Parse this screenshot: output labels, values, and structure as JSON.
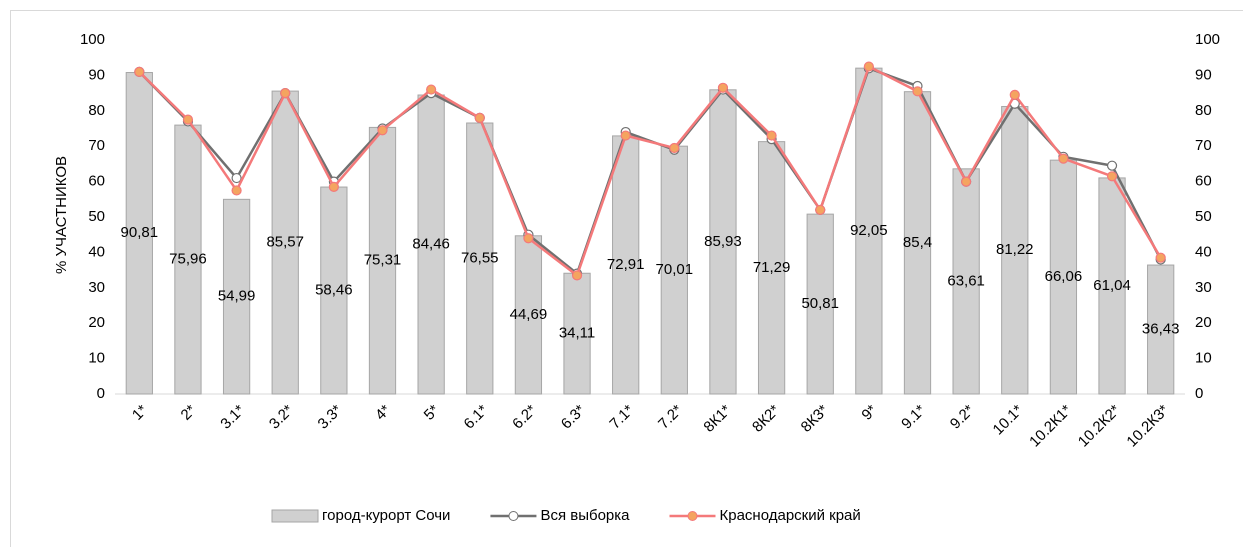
{
  "chart_data": {
    "type": "bar-line",
    "y_label": "% УЧАСТНИКОВ",
    "categories": [
      "1*",
      "2*",
      "3.1*",
      "3.2*",
      "3.3*",
      "4*",
      "5*",
      "6.1*",
      "6.2*",
      "6.3*",
      "7.1*",
      "7.2*",
      "8К1*",
      "8К2*",
      "8К3*",
      "9*",
      "9.1*",
      "9.2*",
      "10.1*",
      "10.2К1*",
      "10.2К2*",
      "10.2К3*"
    ],
    "series": [
      {
        "name": "город-курорт Сочи",
        "type": "bar",
        "color": "#d0d0d0",
        "values": [
          90.81,
          75.96,
          54.99,
          85.57,
          58.46,
          75.31,
          84.46,
          76.55,
          44.69,
          34.11,
          72.91,
          70.01,
          85.93,
          71.29,
          50.81,
          92.05,
          85.4,
          63.61,
          81.22,
          66.06,
          61.04,
          36.43
        ],
        "value_labels": [
          "90,81",
          "75,96",
          "54,99",
          "85,57",
          "58,46",
          "75,31",
          "84,46",
          "76,55",
          "44,69",
          "34,11",
          "72,91",
          "70,01",
          "85,93",
          "71,29",
          "50,81",
          "92,05",
          "85,4",
          "63,61",
          "81,22",
          "66,06",
          "61,04",
          "36,43"
        ]
      },
      {
        "name": "Вся выборка",
        "type": "line",
        "axis": "y2",
        "color": "#707070",
        "marker_fill": "#ffffff",
        "values": [
          91,
          77,
          61,
          85,
          60,
          75,
          85,
          78,
          45,
          34,
          74,
          69,
          86,
          72,
          52,
          92,
          87,
          60,
          82,
          67,
          64.5,
          38
        ]
      },
      {
        "name": "Краснодарский край",
        "type": "line",
        "axis": "y2",
        "color": "#f4797a",
        "marker_fill": "#f4a460",
        "values": [
          91,
          77.5,
          57.5,
          85,
          58.5,
          74.5,
          86,
          78,
          44,
          33.5,
          73,
          69.5,
          86.5,
          73,
          52,
          92.5,
          85.5,
          60,
          84.5,
          66.5,
          61.5,
          38.5
        ]
      }
    ],
    "ylim": [
      0,
      100
    ],
    "yticks": [
      0,
      10,
      20,
      30,
      40,
      50,
      60,
      70,
      80,
      90,
      100
    ],
    "y2lim": [
      0,
      100
    ],
    "y2ticks": [
      0,
      10,
      20,
      30,
      40,
      50,
      60,
      70,
      80,
      90,
      100
    ],
    "legend": "bottom"
  }
}
